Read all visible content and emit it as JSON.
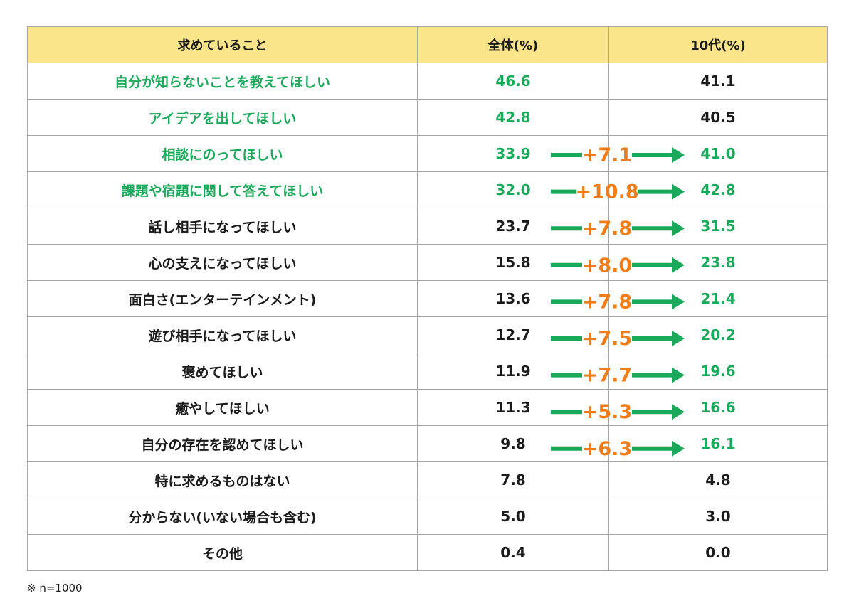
{
  "chart_data": {
    "type": "table",
    "columns": [
      "求めていること",
      "全体(%)",
      "10代(%)"
    ],
    "rows": [
      {
        "item": "自分が知らないことを教えてほしい",
        "all": "46.6",
        "teen": "41.1",
        "diff": "",
        "highlight": "item"
      },
      {
        "item": "アイデアを出してほしい",
        "all": "42.8",
        "teen": "40.5",
        "diff": "",
        "highlight": "item"
      },
      {
        "item": "相談にのってほしい",
        "all": "33.9",
        "teen": "41.0",
        "diff": "+7.1",
        "highlight": "item"
      },
      {
        "item": "課題や宿題に関して答えてほしい",
        "all": "32.0",
        "teen": "42.8",
        "diff": "+10.8",
        "highlight": "item"
      },
      {
        "item": "話し相手になってほしい",
        "all": "23.7",
        "teen": "31.5",
        "diff": "+7.8",
        "highlight": "teen"
      },
      {
        "item": "心の支えになってほしい",
        "all": "15.8",
        "teen": "23.8",
        "diff": "+8.0",
        "highlight": "teen"
      },
      {
        "item": "面白さ(エンターテインメント)",
        "all": "13.6",
        "teen": "21.4",
        "diff": "+7.8",
        "highlight": "teen"
      },
      {
        "item": "遊び相手になってほしい",
        "all": "12.7",
        "teen": "20.2",
        "diff": "+7.5",
        "highlight": "teen"
      },
      {
        "item": "褒めてほしい",
        "all": "11.9",
        "teen": "19.6",
        "diff": "+7.7",
        "highlight": "teen"
      },
      {
        "item": "癒やしてほしい",
        "all": "11.3",
        "teen": "16.6",
        "diff": "+5.3",
        "highlight": "teen"
      },
      {
        "item": "自分の存在を認めてほしい",
        "all": "9.8",
        "teen": "16.1",
        "diff": "+6.3",
        "highlight": "teen"
      },
      {
        "item": "特に求めるものはない",
        "all": "7.8",
        "teen": "4.8",
        "diff": "",
        "highlight": "none"
      },
      {
        "item": "分からない(いない場合も含む)",
        "all": "5.0",
        "teen": "3.0",
        "diff": "",
        "highlight": "none"
      },
      {
        "item": "その他",
        "all": "0.4",
        "teen": "0.0",
        "diff": "",
        "highlight": "none"
      }
    ]
  },
  "footnote": "※ n=1000",
  "colors": {
    "header_bg": "#fbe58a",
    "green": "#1aa85a",
    "orange": "#f07c1a",
    "border": "#a6a6a6"
  }
}
